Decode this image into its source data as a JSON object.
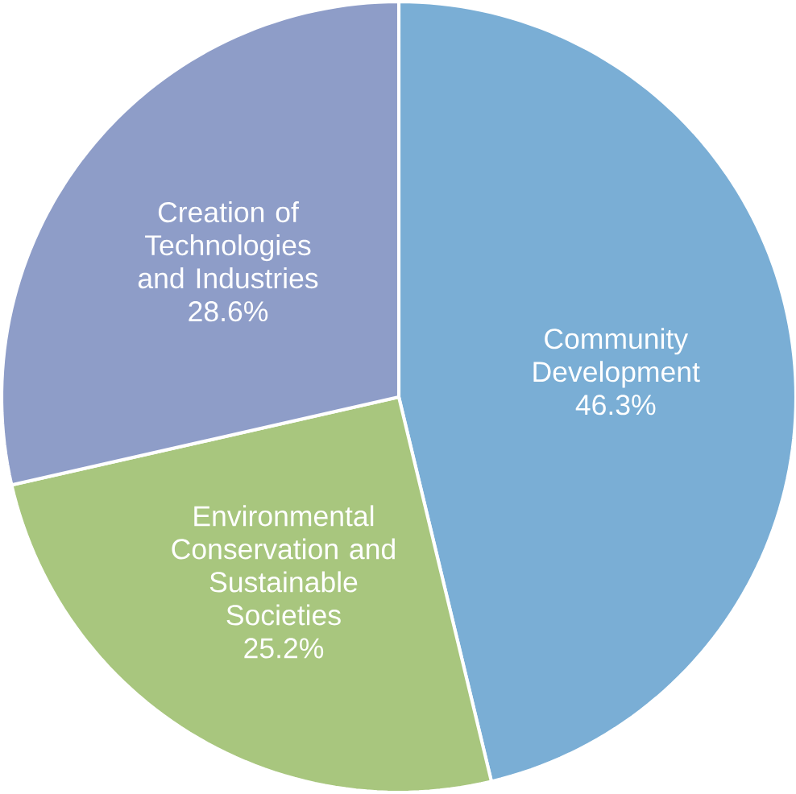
{
  "chart_data": {
    "type": "pie",
    "categories": [
      "Community Development",
      "Environmental Conservation and Sustainable Societies",
      "Creation of Technologies and Industries"
    ],
    "values": [
      46.3,
      25.2,
      28.6
    ],
    "value_labels": [
      "46.3%",
      "25.2%",
      "28.6%"
    ],
    "colors": [
      "#7aaed5",
      "#a8c67e",
      "#8e9dc8"
    ]
  }
}
